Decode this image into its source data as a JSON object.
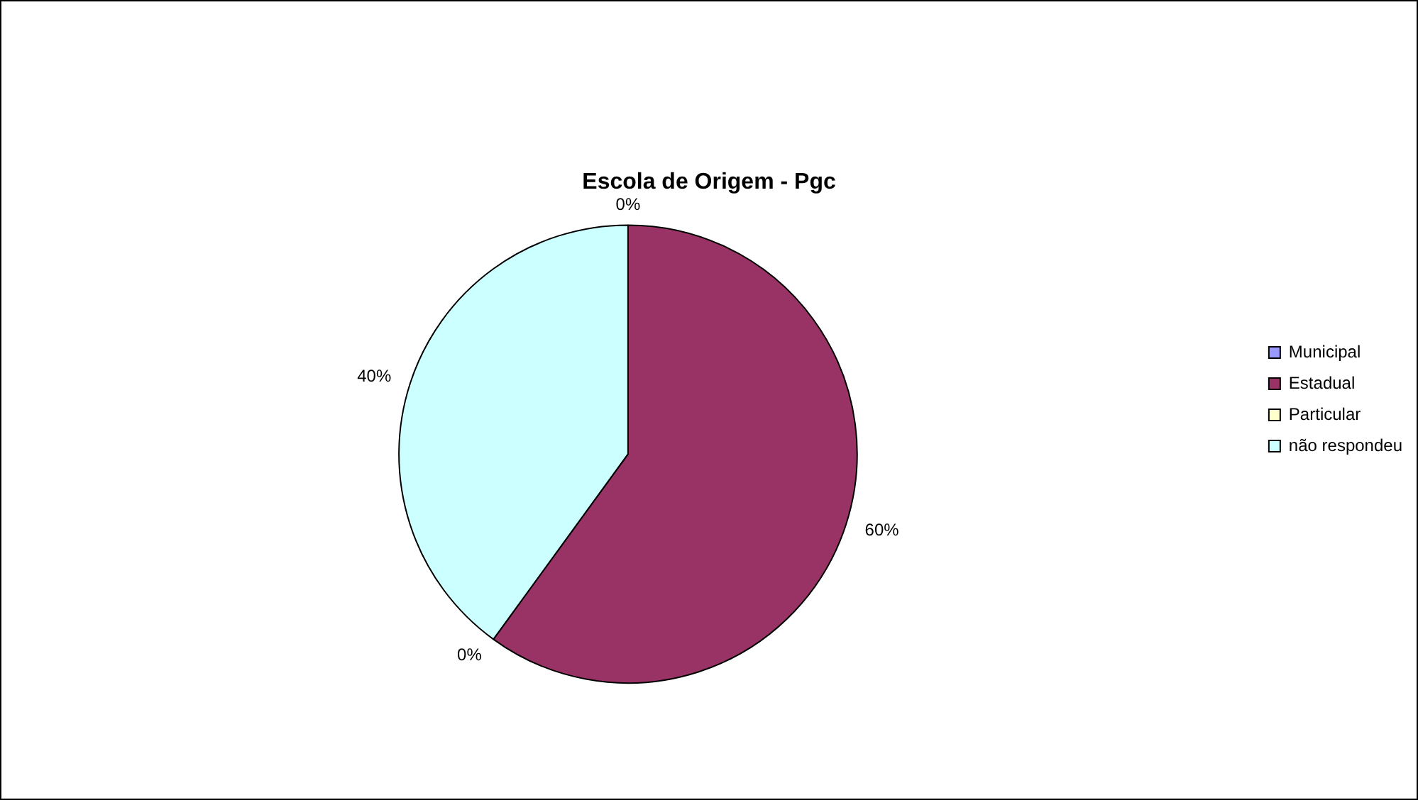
{
  "chart_data": {
    "type": "pie",
    "title": "Escola de Origem - Pgc",
    "categories": [
      "Municipal",
      "Estadual",
      "Particular",
      "não respondeu"
    ],
    "values": [
      0,
      60,
      0,
      40
    ],
    "colors": [
      "#9999ff",
      "#993366",
      "#ffffcc",
      "#ccffff"
    ],
    "value_labels": [
      "0%",
      "60%",
      "0%",
      "40%"
    ],
    "legend": "right"
  }
}
